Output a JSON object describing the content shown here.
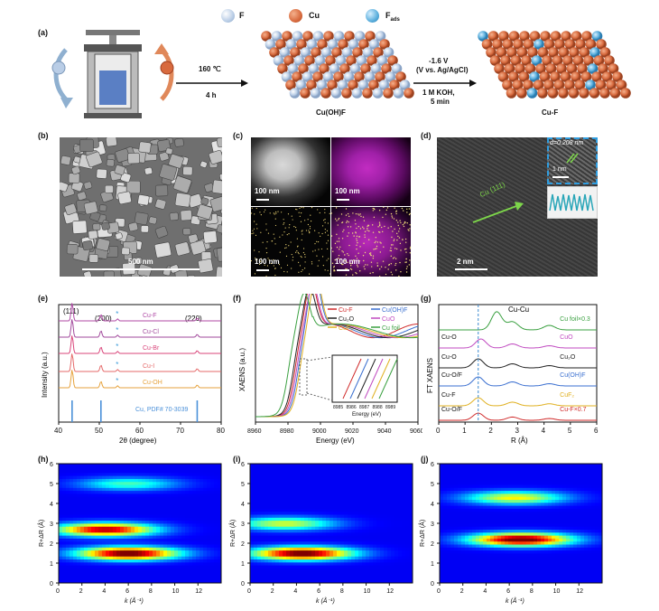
{
  "legend_top": {
    "F": "F",
    "Cu": "Cu",
    "Fads": "F",
    "Fads_sub": "ads"
  },
  "colors": {
    "F": "#b9cde6",
    "Cu": "#d86a3e",
    "Fads": "#5aaedc",
    "sem": "#8a8a8a",
    "tem": "#3c3c3c"
  },
  "panel_a": {
    "label": "(a)",
    "cond1_top": "160 ℃",
    "cond1_bottom": "4 h",
    "product1": "Cu(OH)F",
    "cond2_l1": "-1.6 V",
    "cond2_l2": "(V vs. Ag/AgCl)",
    "cond2_l3": "1 M KOH,",
    "cond2_l4": "5 min",
    "product2": "Cu-F"
  },
  "panel_b": {
    "label": "(b)",
    "scale": "500 nm"
  },
  "panel_c": {
    "label": "(c)",
    "scale1": "100 nm",
    "scale2": "100 nm",
    "scale3": "100 nm",
    "scale4": "100 nm"
  },
  "panel_d": {
    "label": "(d)",
    "lattice": "Cu (111)",
    "d_spacing": "d=0.208 nm",
    "inset_scale": "1 nm",
    "scale": "2 nm"
  },
  "panel_e": {
    "label": "(e)",
    "peaks": [
      "(111)",
      "(200)",
      "(220)"
    ],
    "star": "*",
    "xlabel": "2θ (degree)",
    "ylabel": "Intensity (a.u.)",
    "xticks": [
      "40",
      "50",
      "60",
      "70",
      "80"
    ],
    "ref": "Cu, PDF# 70-3039"
  },
  "panel_f": {
    "label": "(f)",
    "xlabel": "Energy (eV)",
    "ylabel": "XAENS (a.u.)",
    "xticks": [
      "8960",
      "8980",
      "9000",
      "9020",
      "9040",
      "9060"
    ],
    "inset_xlabel": "Energy (eV)",
    "inset_xticks": [
      "8985",
      "8986",
      "8987",
      "8988",
      "8989"
    ]
  },
  "panel_g": {
    "label": "(g)",
    "xlabel": "R (Å)",
    "ylabel": "FT XAENS",
    "xticks": [
      "0",
      "1",
      "2",
      "3",
      "4",
      "5",
      "6"
    ],
    "top_label": "Cu-Cu",
    "left_labels": [
      "Cu-O",
      "Cu-O",
      "Cu-O/F",
      "Cu-F",
      "Cu-O/F"
    ]
  },
  "panel_h": {
    "label": "(h)"
  },
  "panel_i": {
    "label": "(i)"
  },
  "panel_j": {
    "label": "(j)"
  },
  "wt_axes": {
    "ylabel": "R+ΔR (Å)",
    "xlabel": "k (Å⁻¹)",
    "yticks": [
      "0",
      "1",
      "2",
      "3",
      "4",
      "5",
      "6"
    ],
    "xticks": [
      "0",
      "2",
      "4",
      "6",
      "8",
      "10",
      "12"
    ]
  },
  "chart_data": [
    {
      "type": "line",
      "panel": "(e)",
      "xlabel": "2θ (degree)",
      "ylabel": "Intensity (a.u.)",
      "xlim": [
        40,
        80
      ],
      "series": [
        {
          "name": "Cu-F",
          "color": "#b04aa6"
        },
        {
          "name": "Cu-Cl",
          "color": "#a24a9c"
        },
        {
          "name": "Cu-Br",
          "color": "#d9457a"
        },
        {
          "name": "Cu-I",
          "color": "#e56a6a"
        },
        {
          "name": "Cu-OH",
          "color": "#e6a23c"
        }
      ],
      "peaks_2theta": [
        43.3,
        50.4,
        74.1
      ],
      "reference": {
        "name": "Cu, PDF# 70-3039",
        "positions": [
          43.3,
          50.4,
          74.1
        ],
        "color": "#4a90d9"
      }
    },
    {
      "type": "line",
      "panel": "(f)",
      "xlabel": "Energy (eV)",
      "ylabel": "XAENS (a.u.)",
      "xlim": [
        8960,
        9060
      ],
      "series": [
        {
          "name": "Cu-F",
          "color": "#d02a2a"
        },
        {
          "name": "Cu(OH)F",
          "color": "#3a6fd0"
        },
        {
          "name": "Cu₂O",
          "color": "#222222"
        },
        {
          "name": "CuO",
          "color": "#c04ac0"
        },
        {
          "name": "CuF₂",
          "color": "#e0b020"
        },
        {
          "name": "Cu foil",
          "color": "#3aa040"
        }
      ],
      "inset_xlim": [
        8985,
        8989
      ]
    },
    {
      "type": "line",
      "panel": "(g)",
      "xlabel": "R (Å)",
      "ylabel": "FT XAENS",
      "xlim": [
        0,
        6
      ],
      "series": [
        {
          "name": "Cu foil×0.3",
          "color": "#3aa040"
        },
        {
          "name": "CuO",
          "color": "#c04ac0"
        },
        {
          "name": "Cu₂O",
          "color": "#222222"
        },
        {
          "name": "Cu(OH)F",
          "color": "#3a6fd0"
        },
        {
          "name": "CuF₂",
          "color": "#e0b020"
        },
        {
          "name": "Cu-F×0.7",
          "color": "#d02a2a"
        }
      ],
      "dashed_line_R": 1.5
    },
    {
      "type": "heatmap",
      "panel": "(h)",
      "xlabel": "k (Å⁻¹)",
      "ylabel": "R+ΔR (Å)",
      "xlim": [
        0,
        14
      ],
      "ylim": [
        0,
        6
      ],
      "maxima": [
        {
          "k": 6,
          "R": 1.5,
          "level": 1.0
        },
        {
          "k": 4,
          "R": 2.7,
          "level": 0.9
        },
        {
          "k": 6,
          "R": 5.0,
          "level": 0.35
        }
      ]
    },
    {
      "type": "heatmap",
      "panel": "(i)",
      "xlabel": "k (Å⁻¹)",
      "ylabel": "R+ΔR (Å)",
      "xlim": [
        0,
        14
      ],
      "ylim": [
        0,
        6
      ],
      "maxima": [
        {
          "k": 4.5,
          "R": 1.5,
          "level": 1.0
        },
        {
          "k": 3,
          "R": 3.0,
          "level": 0.5
        }
      ]
    },
    {
      "type": "heatmap",
      "panel": "(j)",
      "xlabel": "k (Å⁻¹)",
      "ylabel": "R+ΔR (Å)",
      "xlim": [
        0,
        14
      ],
      "ylim": [
        0,
        6
      ],
      "maxima": [
        {
          "k": 7,
          "R": 2.2,
          "level": 1.0
        },
        {
          "k": 6.5,
          "R": 4.3,
          "level": 0.55
        }
      ]
    }
  ],
  "series_labels_e": [
    "Cu-F",
    "Cu-Cl",
    "Cu-Br",
    "Cu-I",
    "Cu-OH"
  ],
  "series_labels_f": [
    "Cu-F",
    "Cu(OH)F",
    "Cu₂O",
    "CuO",
    "CuF₂",
    "Cu foil"
  ],
  "series_labels_g": [
    "Cu foil×0.3",
    "CuO",
    "Cu₂O",
    "Cu(OH)F",
    "CuF₂",
    "Cu-F×0.7"
  ]
}
